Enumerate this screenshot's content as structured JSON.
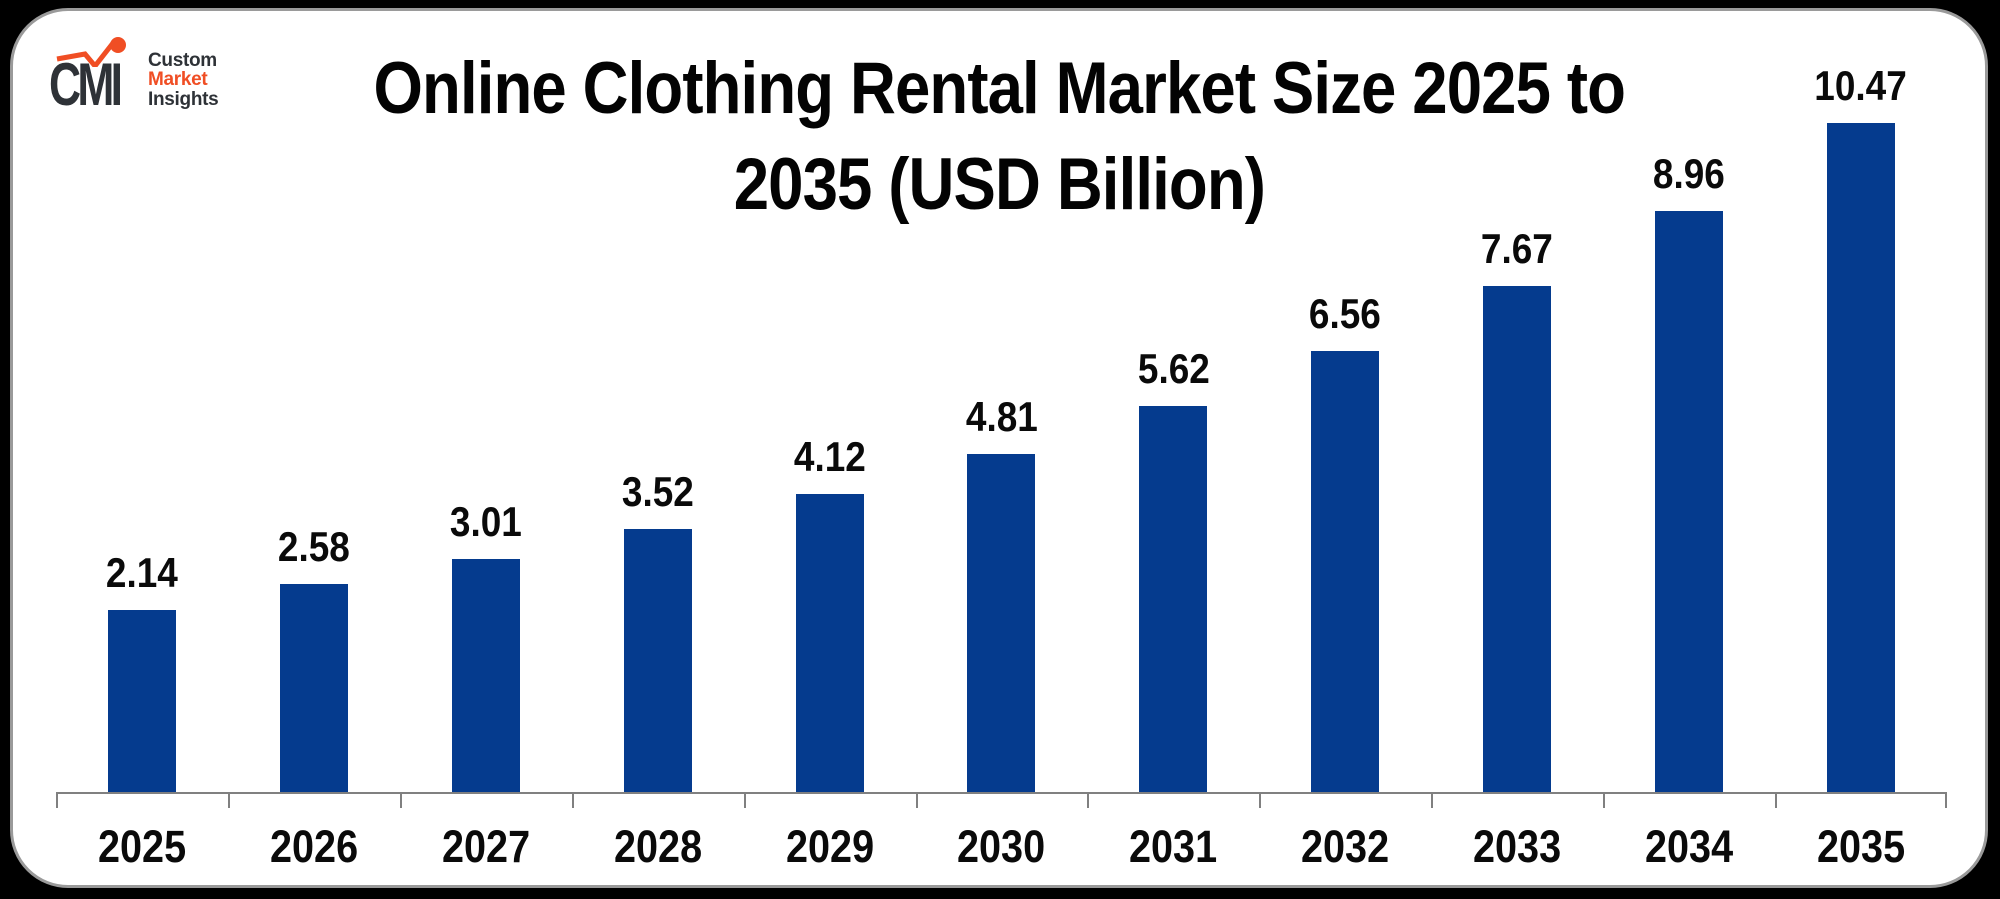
{
  "logo": {
    "monogram": "CMI",
    "line1": "Custom",
    "line2": "Market",
    "line3": "Insights",
    "dark_color": "#2e3237",
    "accent_color": "#f04e24"
  },
  "title": {
    "line1": "Online Clothing Rental Market Size 2025 to",
    "line2": "2035 (USD Billion)"
  },
  "chart_data": {
    "type": "bar",
    "title": "Online Clothing Rental Market Size 2025 to 2035 (USD Billion)",
    "unit": "USD Billion",
    "categories": [
      "2025",
      "2026",
      "2027",
      "2028",
      "2029",
      "2030",
      "2031",
      "2032",
      "2033",
      "2034",
      "2035"
    ],
    "values": [
      2.14,
      2.58,
      3.01,
      3.52,
      4.12,
      4.81,
      5.62,
      6.56,
      7.67,
      8.96,
      10.47
    ],
    "value_labels": [
      "2.14",
      "2.58",
      "3.01",
      "3.52",
      "4.12",
      "4.81",
      "5.62",
      "6.56",
      "7.67",
      "8.96",
      "10.47"
    ],
    "xlabel": "",
    "ylabel": "",
    "grid": false,
    "legend_position": "none",
    "value_axis_visible": false,
    "bar_color": "#053b8e",
    "axis_color": "#808080",
    "label_color": "#0a0a0a"
  }
}
